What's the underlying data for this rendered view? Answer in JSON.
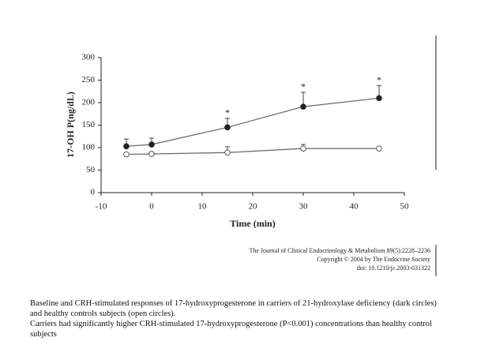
{
  "chart_data": {
    "type": "line",
    "xlabel": "Time (min)",
    "ylabel": "17-OH P(ng/dL)",
    "x": [
      -5,
      0,
      15,
      30,
      45
    ],
    "series": [
      {
        "color": "#222222",
        "marker_fill": "#222222",
        "values": [
          103,
          107,
          145,
          191,
          210
        ],
        "errors": [
          16,
          14,
          20,
          32,
          28
        ]
      },
      {
        "color": "#555555",
        "marker_fill": "#ffffff",
        "values": [
          85,
          86,
          89,
          98,
          98
        ],
        "errors": [
          3,
          3,
          13,
          9,
          3
        ]
      }
    ],
    "annotations": [
      {
        "x": 15,
        "text": "*"
      },
      {
        "x": 30,
        "text": "*"
      },
      {
        "x": 45,
        "text": "*"
      }
    ],
    "xlim": [
      -10,
      50
    ],
    "xticks": [
      -10,
      0,
      10,
      20,
      30,
      40,
      50
    ],
    "ylim": [
      0,
      300
    ],
    "yticks": [
      0,
      50,
      100,
      150,
      200,
      250,
      300
    ]
  },
  "credit": [
    "The Journal of Clinical Endocrinology & Metabolism 89(5):2228–2236",
    "Copyright © 2004 by The Endocrine Society",
    "doi: 10.1210/jc.2003-031322"
  ],
  "caption": [
    "Baseline and CRH-stimulated responses of 17-hydroxyprogesterone in carriers of 21-hydroxylase deficiency (dark circles) and healthy controls subjects (open circles).",
    "Carriers had significantly higher CRH-stimulated 17-hydroxyprogesterone (P<0.001) concentrations than healthy control subjects"
  ]
}
